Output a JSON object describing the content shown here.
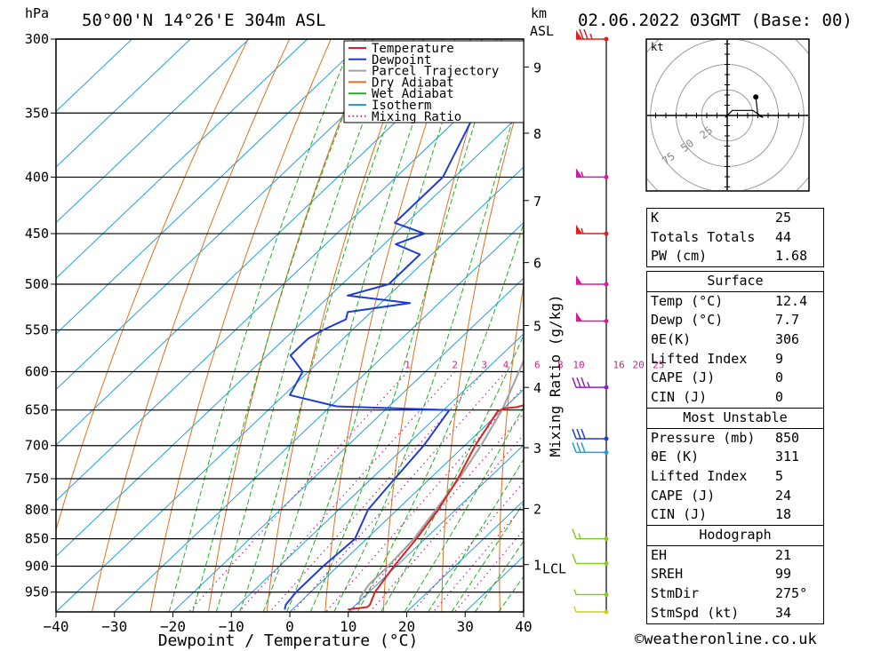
{
  "header": {
    "location": "50°00'N 14°26'E 304m ASL",
    "datetime": "02.06.2022 03GMT (Base: 00)",
    "hpa_label": "hPa",
    "km_label": "km",
    "asl_label": "ASL"
  },
  "chart_data": {
    "type": "skew-t log-p sounding",
    "xlabel": "Dewpoint / Temperature (°C)",
    "right_axis_label": "Mixing Ratio (g/kg)",
    "x_ticks": [
      "−40",
      "−30",
      "−20",
      "−10",
      "0",
      "10",
      "20",
      "30",
      "40"
    ],
    "x_range": [
      -40,
      40
    ],
    "pressure_range": [
      300,
      990
    ],
    "pressure_ticks": [
      300,
      350,
      400,
      450,
      500,
      550,
      600,
      650,
      700,
      750,
      800,
      850,
      900,
      950
    ],
    "km_ticks": [
      {
        "label": "9",
        "p": 318
      },
      {
        "label": "8",
        "p": 365
      },
      {
        "label": "7",
        "p": 420
      },
      {
        "label": "6",
        "p": 478
      },
      {
        "label": "5",
        "p": 545
      },
      {
        "label": "4",
        "p": 620
      },
      {
        "label": "3",
        "p": 703
      },
      {
        "label": "2",
        "p": 798
      },
      {
        "label": "1",
        "p": 897
      }
    ],
    "lcl_label": "LCL",
    "lcl_pressure": 905,
    "mixing_ratio_labels": [
      "1",
      "2",
      "3",
      "4",
      "6",
      "8",
      "10",
      "16",
      "20",
      "25"
    ],
    "mixing_ratio_label_pressure": 600,
    "legend": [
      {
        "name": "Temperature",
        "color": "#e02020",
        "style": "solid"
      },
      {
        "name": "Dewpoint",
        "color": "#1e3cd8",
        "style": "solid"
      },
      {
        "name": "Parcel Trajectory",
        "color": "#a0a0a0",
        "style": "solid"
      },
      {
        "name": "Dry Adiabat",
        "color": "#e07020",
        "style": "solid"
      },
      {
        "name": "Wet Adiabat",
        "color": "#20b020",
        "style": "solid"
      },
      {
        "name": "Isotherm",
        "color": "#1fa0e0",
        "style": "solid"
      },
      {
        "name": "Mixing Ratio",
        "color": "#d0208c",
        "style": "dotted"
      }
    ],
    "series": [
      {
        "name": "Temperature",
        "color": "#e02020",
        "points": [
          [
            300,
            -28
          ],
          [
            320,
            -25
          ],
          [
            350,
            -20.5
          ],
          [
            400,
            -14
          ],
          [
            450,
            -8
          ],
          [
            460,
            -7.5
          ],
          [
            475,
            -6
          ],
          [
            500,
            -3.5
          ],
          [
            530,
            -1.5
          ],
          [
            540,
            -1
          ],
          [
            550,
            0
          ],
          [
            600,
            2.8
          ],
          [
            640,
            4
          ],
          [
            646,
            2
          ],
          [
            648,
            0
          ],
          [
            652,
            -0.5
          ],
          [
            700,
            1.8
          ],
          [
            750,
            4.8
          ],
          [
            800,
            7
          ],
          [
            850,
            8.5
          ],
          [
            900,
            9.6
          ],
          [
            950,
            11
          ],
          [
            975,
            12.4
          ],
          [
            980,
            12.4
          ],
          [
            985,
            9.5
          ]
        ]
      },
      {
        "name": "Dewpoint",
        "color": "#1e3cd8",
        "points": [
          [
            300,
            -46
          ],
          [
            308,
            -45
          ],
          [
            320,
            -44
          ],
          [
            322,
            -55
          ],
          [
            335,
            -59
          ],
          [
            350,
            -58
          ],
          [
            400,
            -52
          ],
          [
            440,
            -52
          ],
          [
            450,
            -45
          ],
          [
            460,
            -48
          ],
          [
            470,
            -42
          ],
          [
            500,
            -42
          ],
          [
            512,
            -47
          ],
          [
            520,
            -35
          ],
          [
            530,
            -44
          ],
          [
            538,
            -43
          ],
          [
            550,
            -45
          ],
          [
            560,
            -46
          ],
          [
            580,
            -46
          ],
          [
            600,
            -41
          ],
          [
            630,
            -39
          ],
          [
            645,
            -29
          ],
          [
            650,
            -9
          ],
          [
            700,
            -7
          ],
          [
            750,
            -6
          ],
          [
            800,
            -5
          ],
          [
            850,
            -2
          ],
          [
            900,
            -2.5
          ],
          [
            950,
            -2.5
          ],
          [
            975,
            -2
          ],
          [
            985,
            -1.3
          ]
        ]
      },
      {
        "name": "Parcel Trajectory",
        "color": "#a0a0a0",
        "points": [
          [
            300,
            -44
          ],
          [
            350,
            -35
          ],
          [
            400,
            -27
          ],
          [
            450,
            -19.5
          ],
          [
            500,
            -14
          ],
          [
            550,
            -8.5
          ],
          [
            600,
            -4
          ],
          [
            650,
            0
          ],
          [
            700,
            2.8
          ],
          [
            750,
            5
          ],
          [
            800,
            6.6
          ],
          [
            850,
            8.1
          ],
          [
            900,
            8.6
          ],
          [
            935,
            8.6
          ],
          [
            960,
            9.4
          ],
          [
            975,
            10.5
          ]
        ]
      }
    ],
    "wind_barbs": [
      {
        "p": 300,
        "color": "#e02020",
        "speed": 75
      },
      {
        "p": 400,
        "color": "#d41ca0",
        "speed": 55
      },
      {
        "p": 450,
        "color": "#e02020",
        "speed": 55
      },
      {
        "p": 500,
        "color": "#d41ca0",
        "speed": 50
      },
      {
        "p": 540,
        "color": "#d41ca0",
        "speed": 50
      },
      {
        "p": 620,
        "color": "#9020c0",
        "speed": 35
      },
      {
        "p": 690,
        "color": "#1e3cd8",
        "speed": 30
      },
      {
        "p": 710,
        "color": "#1fa0d0",
        "speed": 30
      },
      {
        "p": 850,
        "color": "#88cc22",
        "speed": 15
      },
      {
        "p": 895,
        "color": "#88cc22",
        "speed": 10
      },
      {
        "p": 955,
        "color": "#88cc22",
        "speed": 5
      },
      {
        "p": 990,
        "color": "#cccc22",
        "speed": 5
      }
    ],
    "hodograph": {
      "unit_label": "kt",
      "ring_labels": [
        "25",
        "50",
        "75"
      ],
      "points_kt": [
        [
          0,
          0
        ],
        [
          -2,
          -2
        ],
        [
          5,
          5
        ],
        [
          25,
          5
        ],
        [
          35,
          -2
        ],
        [
          30,
          0
        ],
        [
          28,
          18
        ]
      ]
    }
  },
  "indices": {
    "top": [
      {
        "label": "K",
        "value": "25"
      },
      {
        "label": "Totals Totals",
        "value": "44"
      },
      {
        "label": "PW (cm)",
        "value": "1.68"
      }
    ],
    "surface": {
      "title": "Surface",
      "rows": [
        {
          "label": "Temp (°C)",
          "value": "12.4"
        },
        {
          "label": "Dewp (°C)",
          "value": "7.7"
        },
        {
          "label": "θE(K)",
          "value": "306"
        },
        {
          "label": "Lifted Index",
          "value": "9"
        },
        {
          "label": "CAPE (J)",
          "value": "0"
        },
        {
          "label": "CIN (J)",
          "value": "0"
        }
      ]
    },
    "most_unstable": {
      "title": "Most Unstable",
      "rows": [
        {
          "label": "Pressure (mb)",
          "value": "850"
        },
        {
          "label": "θE (K)",
          "value": "311"
        },
        {
          "label": "Lifted Index",
          "value": "5"
        },
        {
          "label": "CAPE (J)",
          "value": "24"
        },
        {
          "label": "CIN (J)",
          "value": "18"
        }
      ]
    },
    "hodograph": {
      "title": "Hodograph",
      "rows": [
        {
          "label": "EH",
          "value": "21"
        },
        {
          "label": "SREH",
          "value": "99"
        },
        {
          "label": "StmDir",
          "value": "275°"
        },
        {
          "label": "StmSpd (kt)",
          "value": "34"
        }
      ]
    }
  },
  "footer": {
    "copyright": "©weatheronline.co.uk"
  }
}
